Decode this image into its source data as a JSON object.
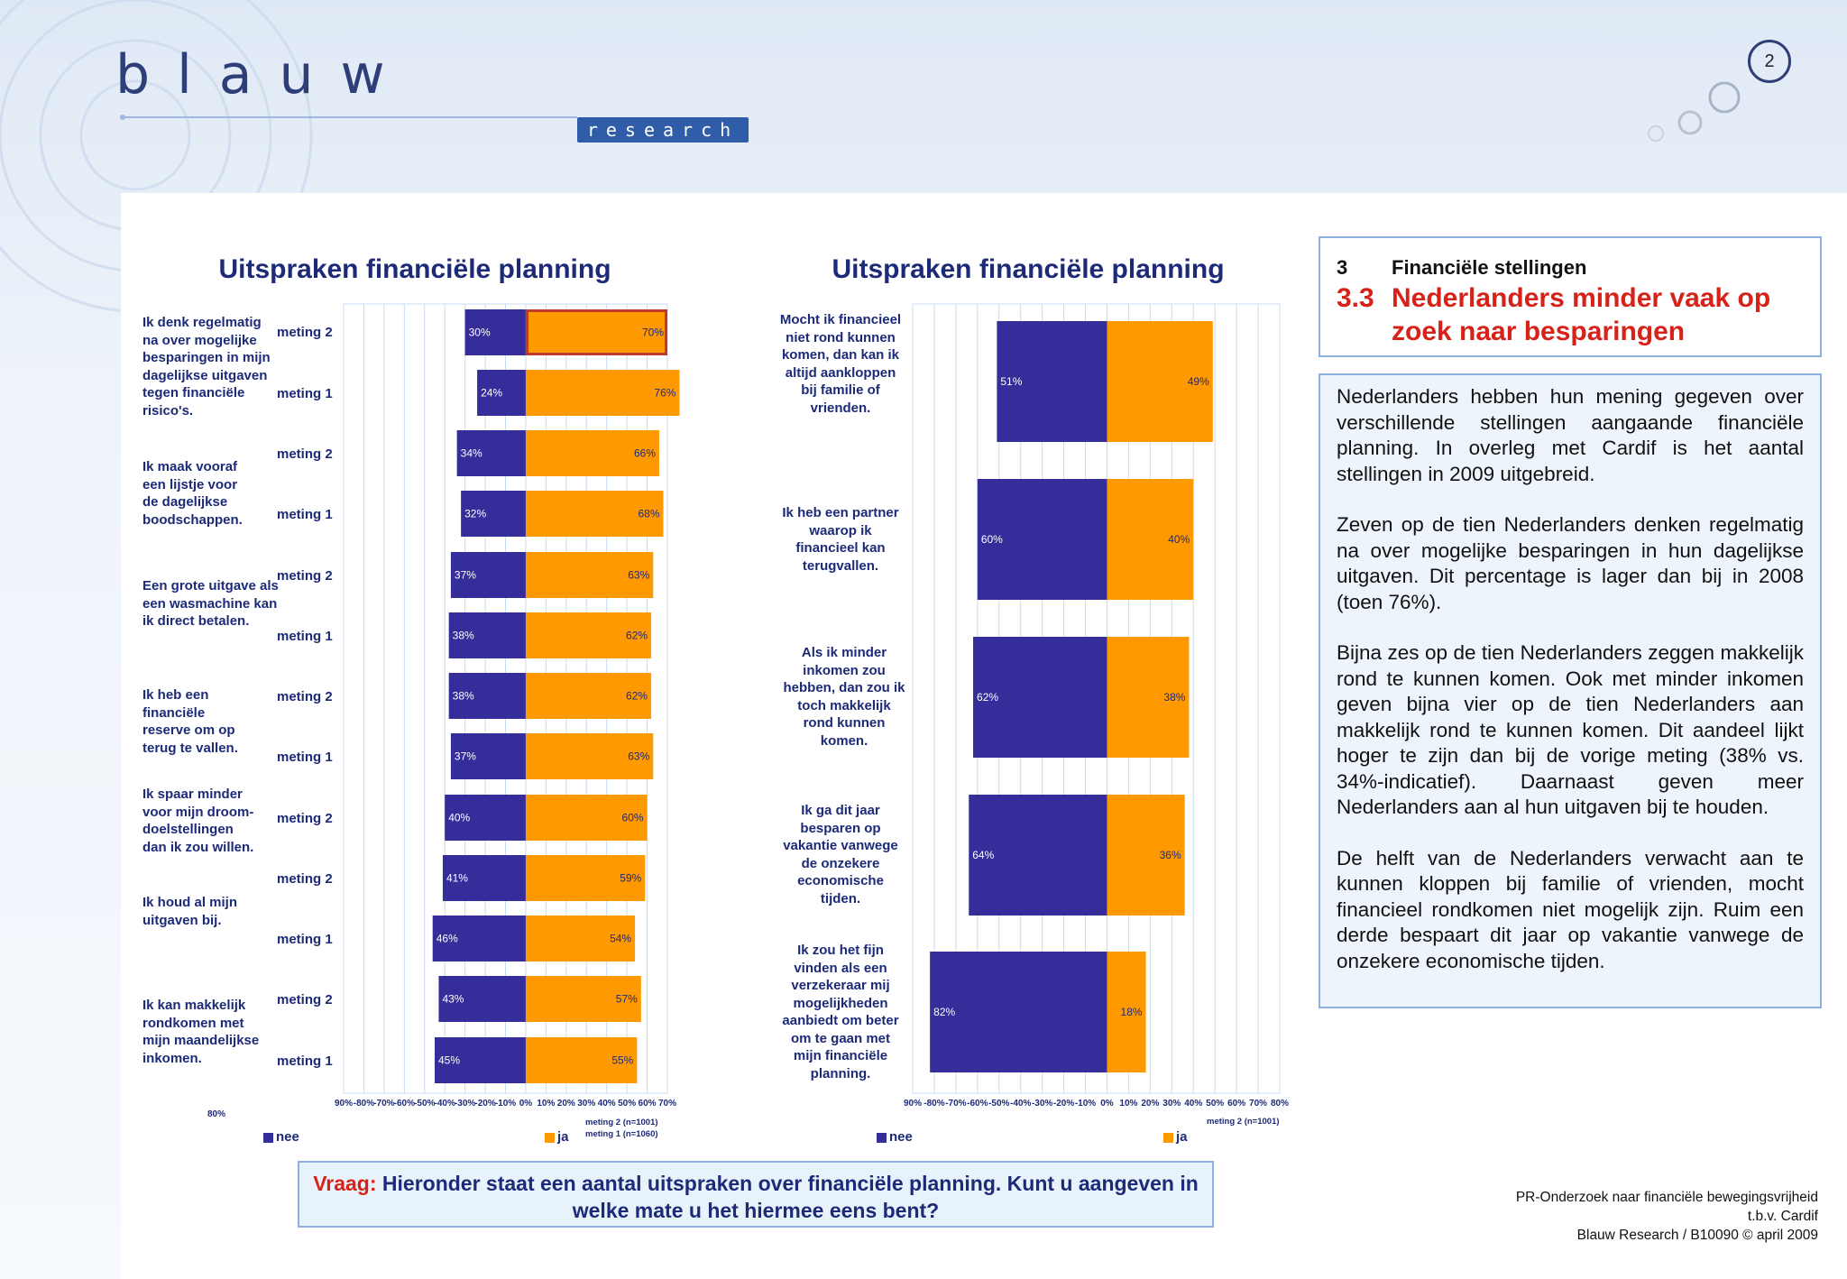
{
  "page_number": "2",
  "logo": {
    "word": "blauw",
    "sub": "research"
  },
  "colors": {
    "nee": "#352d9a",
    "ja": "#ff9900",
    "title": "#1c2a78",
    "accent": "#d62218"
  },
  "legend": {
    "nee": "nee",
    "ja": "ja"
  },
  "stray_label": "80%",
  "chart_data": [
    {
      "type": "bar",
      "orientation": "horizontal-diverging",
      "title": "Uitspraken financiële planning",
      "xlim": [
        -90,
        70
      ],
      "tick_values": [
        -90,
        -80,
        -70,
        -60,
        -50,
        -40,
        -30,
        -20,
        -10,
        0,
        10,
        20,
        30,
        40,
        50,
        60,
        70
      ],
      "tick_labels": [
        "90%",
        "-80%",
        "-70%",
        "-60%",
        "-50%",
        "-40%",
        "-30%",
        "-20%",
        "-10%",
        "0%",
        "10%",
        "20%",
        "30%",
        "40%",
        "50%",
        "60%",
        "70%"
      ],
      "series": [
        {
          "name": "nee"
        },
        {
          "name": "ja"
        }
      ],
      "statements": [
        {
          "text": "Ik denk regelmatig na over mogelijke besparingen in mijn dagelijkse uitgaven tegen financiële risico's.",
          "rows": [
            {
              "label": "meting 2",
              "nee": 30,
              "ja": 70,
              "nee_label": "30%",
              "ja_label": "70%",
              "highlight": true
            },
            {
              "label": "meting 1",
              "nee": 24,
              "ja": 76,
              "nee_label": "24%",
              "ja_label": "76%"
            }
          ]
        },
        {
          "text": "Ik maak vooraf een lijstje voor de dagelijkse boodschappen.",
          "rows": [
            {
              "label": "meting 2",
              "nee": 34,
              "ja": 66,
              "nee_label": "34%",
              "ja_label": "66%"
            },
            {
              "label": "meting 1",
              "nee": 32,
              "ja": 68,
              "nee_label": "32%",
              "ja_label": "68%"
            }
          ]
        },
        {
          "text": "Een grote uitgave als een wasmachine kan ik direct betalen.",
          "rows": [
            {
              "label": "meting 2",
              "nee": 37,
              "ja": 63,
              "nee_label": "37%",
              "ja_label": "63%"
            },
            {
              "label": "meting 1",
              "nee": 38,
              "ja": 62,
              "nee_label": "38%",
              "ja_label": "62%"
            }
          ]
        },
        {
          "text": "Ik heb een financiële reserve om op terug te vallen.",
          "rows": [
            {
              "label": "meting 2",
              "nee": 38,
              "ja": 62,
              "nee_label": "38%",
              "ja_label": "62%"
            },
            {
              "label": "meting 1",
              "nee": 37,
              "ja": 63,
              "nee_label": "37%",
              "ja_label": "63%"
            }
          ]
        },
        {
          "text": "Ik spaar minder voor mijn droom-doelstellingen dan ik zou willen.",
          "rows": [
            {
              "label": "meting 2",
              "nee": 40,
              "ja": 60,
              "nee_label": "40%",
              "ja_label": "60%"
            }
          ]
        },
        {
          "text": "Ik houd al mijn uitgaven bij.",
          "rows": [
            {
              "label": "meting 2",
              "nee": 41,
              "ja": 59,
              "nee_label": "41%",
              "ja_label": "59%"
            },
            {
              "label": "meting 1",
              "nee": 46,
              "ja": 54,
              "nee_label": "46%",
              "ja_label": "54%"
            }
          ]
        },
        {
          "text": "Ik kan makkelijk rondkomen met mijn maandelijkse inkomen.",
          "rows": [
            {
              "label": "meting 2",
              "nee": 43,
              "ja": 57,
              "nee_label": "43%",
              "ja_label": "57%"
            },
            {
              "label": "meting 1",
              "nee": 45,
              "ja": 55,
              "nee_label": "45%",
              "ja_label": "55%"
            }
          ]
        }
      ],
      "notes": [
        "meting 2 (n=1001)",
        "meting 1 (n=1060)"
      ]
    },
    {
      "type": "bar",
      "orientation": "horizontal-diverging",
      "title": "Uitspraken financiële planning",
      "xlim": [
        -90,
        80
      ],
      "tick_values": [
        -90,
        -80,
        -70,
        -60,
        -50,
        -40,
        -30,
        -20,
        -10,
        0,
        10,
        20,
        30,
        40,
        50,
        60,
        70,
        80
      ],
      "tick_labels": [
        "90%",
        "-80%",
        "-70%",
        "-60%",
        "-50%",
        "-40%",
        "-30%",
        "-20%",
        "-10%",
        "0%",
        "10%",
        "20%",
        "30%",
        "40%",
        "50%",
        "60%",
        "70%",
        "80%"
      ],
      "series": [
        {
          "name": "nee"
        },
        {
          "name": "ja"
        }
      ],
      "statements": [
        {
          "text": "Mocht ik financieel niet rond kunnen komen, dan kan ik altijd aankloppen bij familie of vrienden.",
          "nee": 51,
          "ja": 49,
          "nee_label": "51%",
          "ja_label": "49%"
        },
        {
          "text": "Ik heb een partner waarop ik financieel kan terugvallen.",
          "nee": 60,
          "ja": 40,
          "nee_label": "60%",
          "ja_label": "40%"
        },
        {
          "text": "Als ik minder inkomen zou hebben, dan zou ik toch makkelijk rond kunnen komen.",
          "nee": 62,
          "ja": 38,
          "nee_label": "62%",
          "ja_label": "38%"
        },
        {
          "text": "Ik ga dit jaar besparen op vakantie vanwege de onzekere economische tijden.",
          "nee": 64,
          "ja": 36,
          "nee_label": "64%",
          "ja_label": "36%"
        },
        {
          "text": "Ik zou het fijn vinden als een verzekeraar mij mogelijkheden aanbiedt om beter om te gaan met mijn financiële planning.",
          "nee": 82,
          "ja": 18,
          "nee_label": "82%",
          "ja_label": "18%"
        }
      ],
      "notes": [
        "meting 2 (n=1001)"
      ]
    }
  ],
  "section": {
    "number": "3",
    "name": "Financiële stellingen",
    "sub_number": "3.3",
    "title_line1": "Nederlanders minder vaak op",
    "title_line2": "zoek naar besparingen"
  },
  "summary": [
    "Nederlanders hebben hun mening gegeven over verschillende stellingen aangaande financiële planning. In overleg met Cardif is het aantal stellingen in 2009 uitgebreid.",
    "Zeven op de tien Nederlanders denken regelmatig na over mogelijke besparingen in hun dagelijkse uitgaven. Dit percentage is lager dan bij in 2008 (toen 76%).",
    "Bijna zes op de tien Nederlanders zeggen makkelijk rond te kunnen komen. Ook met minder inkomen geven bijna vier op de tien Nederlanders aan makkelijk rond te kunnen komen. Dit aandeel lijkt hoger te zijn dan bij de vorige meting (38% vs. 34%-indicatief). Daarnaast geven meer Nederlanders aan al hun uitgaven bij te houden.",
    "De helft van de Nederlanders verwacht aan te kunnen kloppen bij familie of vrienden, mocht financieel rondkomen niet mogelijk zijn. Ruim een derde bespaart dit jaar op vakantie vanwege de onzekere economische tijden."
  ],
  "question": {
    "prefix": "Vraag:",
    "text": "Hieronder staat een aantal uitspraken over financiële planning. Kunt u aangeven in welke mate u het hiermee eens bent?"
  },
  "footer": {
    "line1": "PR-Onderzoek naar financiële bewegingsvrijheid",
    "line2": "t.b.v. Cardif",
    "line3": "Blauw Research / B10090 © april 2009"
  }
}
